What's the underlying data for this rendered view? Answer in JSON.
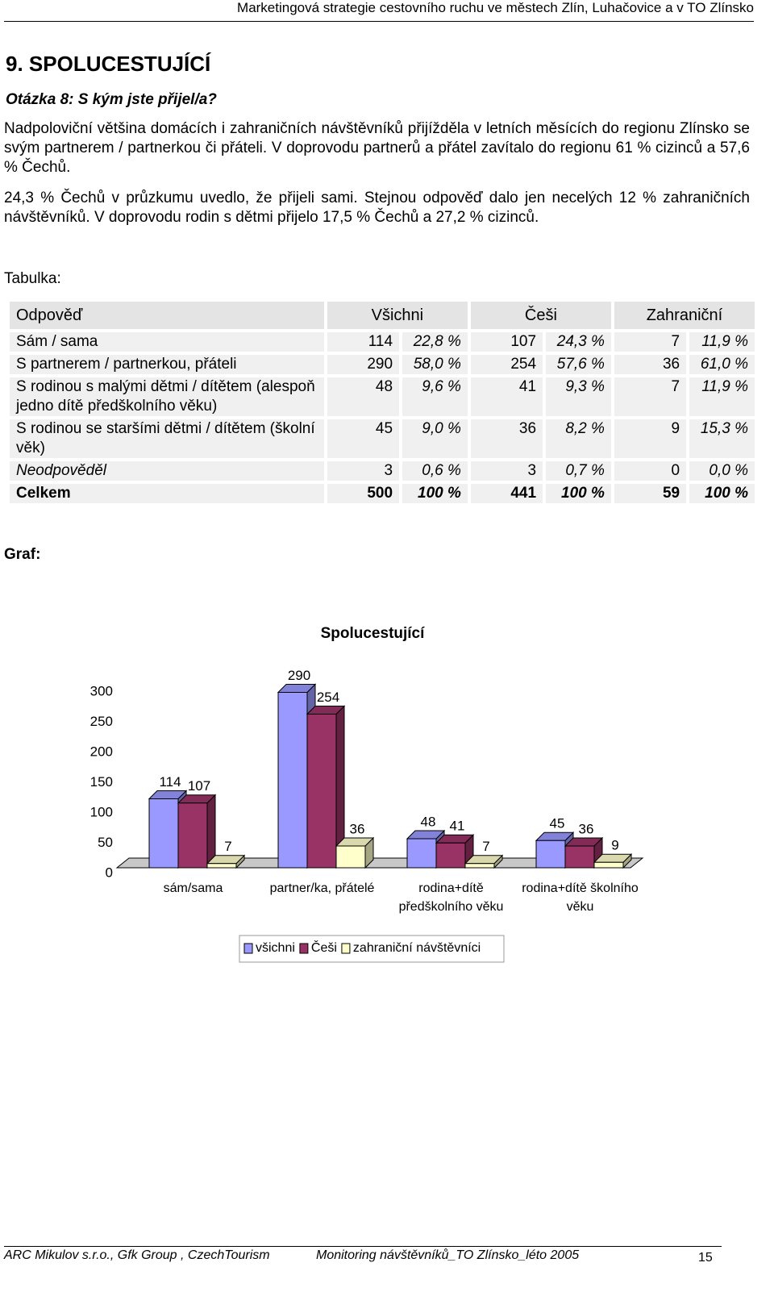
{
  "header": "Marketingová strategie cestovního ruchu ve městech Zlín, Luhačovice a v TO Zlínsko",
  "heading": "9. SPOLUCESTUJÍCÍ",
  "question": "Otázka 8: S kým jste přijel/a?",
  "paragraphs": [
    "Nadpoloviční většina domácích i zahraničních návštěvníků přijížděla v letních měsících do regionu Zlínsko se svým partnerem / partnerkou či přáteli. V doprovodu partnerů a přátel zavítalo do regionu 61 % cizinců a 57,6 % Čechů.",
    "24,3 % Čechů v průzkumu uvedlo, že přijeli sami. Stejnou odpověď dalo jen necelých 12 % zahraničních návštěvníků. V doprovodu rodin s dětmi přijelo 17,5 % Čechů a 27,2 % cizinců."
  ],
  "table_label": "Tabulka:",
  "table": {
    "header": [
      "Odpověď",
      "Všichni",
      "Češi",
      "Zahraniční"
    ],
    "rows": [
      [
        "Sám / sama",
        "114",
        "22,8 %",
        "107",
        "24,3 %",
        "7",
        "11,9 %"
      ],
      [
        "S partnerem / partnerkou, přáteli",
        "290",
        "58,0 %",
        "254",
        "57,6 %",
        "36",
        "61,0 %"
      ],
      [
        "S rodinou s malými dětmi / dítětem (alespoň jedno dítě předškolního věku)",
        "48",
        "9,6 %",
        "41",
        "9,3 %",
        "7",
        "11,9 %"
      ],
      [
        "S rodinou se staršími dětmi / dítětem (školní věk)",
        "45",
        "9,0 %",
        "36",
        "8,2 %",
        "9",
        "15,3 %"
      ],
      [
        "Neodpověděl",
        "3",
        "0,6 %",
        "3",
        "0,7 %",
        "0",
        "0,0 %"
      ],
      [
        "Celkem",
        "500",
        "100 %",
        "441",
        "100 %",
        "59",
        "100 %"
      ]
    ]
  },
  "chart_label": "Graf:",
  "chart_data": {
    "type": "bar3d",
    "title": "Spolucestující",
    "categories": [
      "sám/sama",
      "partner/ka, přátelé",
      "rodina+dítě předškolního věku",
      "rodina+dítě školního věku"
    ],
    "series": [
      {
        "name": "všichni",
        "color": "#9999ff",
        "values": [
          114,
          290,
          48,
          45
        ]
      },
      {
        "name": "Češi",
        "color": "#993366",
        "values": [
          107,
          254,
          41,
          36
        ]
      },
      {
        "name": "zahraniční návštěvníci",
        "color": "#ffffcc",
        "values": [
          7,
          36,
          7,
          9
        ]
      }
    ],
    "ylim": [
      0,
      300
    ],
    "yticks": [
      0,
      50,
      100,
      150,
      200,
      250,
      300
    ],
    "legend": "bottom"
  },
  "footer": {
    "left": "ARC Mikulov s.r.o., Gfk Group , CzechTourism",
    "center": "Monitoring návštěvníků_TO Zlínsko_léto 2005",
    "page": "15"
  }
}
